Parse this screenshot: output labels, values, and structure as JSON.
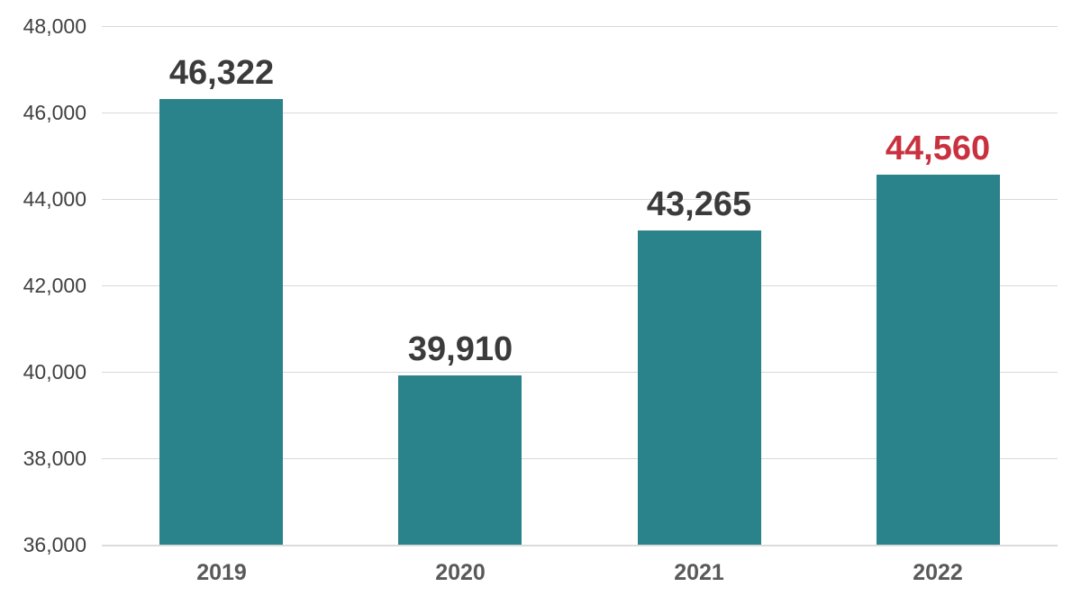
{
  "chart_data": {
    "type": "bar",
    "categories": [
      "2019",
      "2020",
      "2021",
      "2022"
    ],
    "values": [
      46322,
      39910,
      43265,
      44560
    ],
    "value_labels": [
      "46,322",
      "39,910",
      "43,265",
      "44,560"
    ],
    "highlight_index": 3,
    "title": "",
    "xlabel": "",
    "ylabel": "",
    "ylim": [
      36000,
      48000
    ],
    "ytick_step": 2000,
    "ytick_labels": [
      "36,000",
      "38,000",
      "40,000",
      "42,000",
      "44,000",
      "46,000",
      "48,000"
    ],
    "grid": "horizontal-only",
    "legend": "none",
    "colors": {
      "bar": "#2a838a",
      "value_label": "#3b3b3b",
      "value_label_highlight": "#c9313f",
      "ytick_label": "#404040",
      "xtick_label": "#595959",
      "gridline": "#d9d9d9",
      "axis_line": "#dcdcdc",
      "background": "#ffffff"
    }
  }
}
